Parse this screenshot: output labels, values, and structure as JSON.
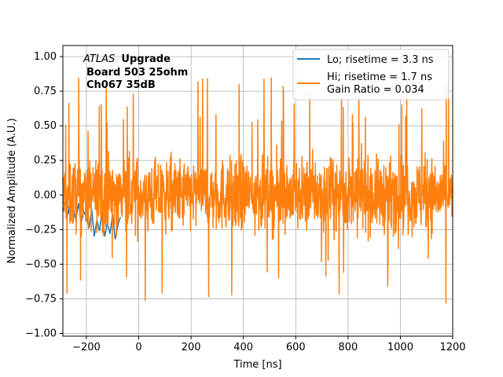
{
  "chart_data": {
    "type": "line",
    "xlabel": "Time [ns]",
    "ylabel": "Normalized Amplitude (A.U.)",
    "xlim": [
      -290,
      1200
    ],
    "ylim": [
      -1.02,
      1.08
    ],
    "xticks": [
      -200,
      0,
      200,
      400,
      600,
      800,
      1000,
      1200
    ],
    "yticks": [
      -1.0,
      -0.75,
      -0.5,
      -0.25,
      0.0,
      0.25,
      0.5,
      0.75,
      1.0
    ],
    "grid": true,
    "legend_position": "top-right",
    "annotation": {
      "italic": "ATLAS",
      "bold": "Upgrade",
      "line2": "Board 503 25ohm",
      "line3": "Ch067 35dB"
    },
    "series": [
      {
        "name": "Lo; risetime = 3.3 ns",
        "color": "#1f77b4",
        "x": [
          -290,
          -280,
          -270,
          -260,
          -250,
          -240,
          -230,
          -220,
          -210,
          -200,
          -190,
          -180,
          -170,
          -160,
          -150,
          -140,
          -130,
          -120,
          -110,
          -100,
          -90,
          -80,
          -70
        ],
        "y": [
          -0.12,
          -0.05,
          -0.14,
          -0.02,
          -0.1,
          -0.18,
          -0.06,
          -0.2,
          -0.12,
          -0.16,
          -0.24,
          -0.1,
          -0.3,
          -0.18,
          -0.26,
          -0.12,
          -0.3,
          -0.2,
          -0.28,
          -0.14,
          -0.32,
          -0.22,
          -0.16
        ]
      },
      {
        "name": "Hi; risetime = 1.7 ns\n Gain Ratio = 0.034",
        "color": "#ff7f0e",
        "x_range": [
          -290,
          1200
        ],
        "amplitude_range": [
          -0.78,
          0.9
        ]
      }
    ]
  }
}
